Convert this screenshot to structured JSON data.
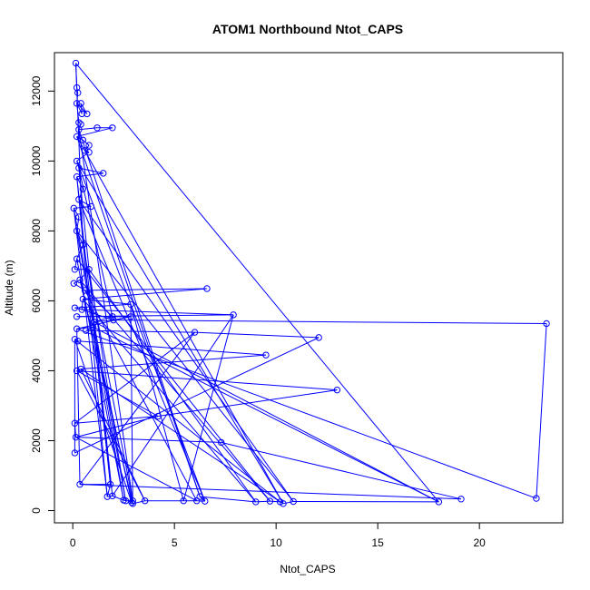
{
  "chart_data": {
    "type": "line",
    "title": "ATOM1 Northbound Ntot_CAPS",
    "xlabel": "Ntot_CAPS",
    "ylabel": "Altitude (m)",
    "xlim": [
      -0.9,
      24.1
    ],
    "ylim": [
      -350,
      13100
    ],
    "x_ticks": [
      0,
      5,
      10,
      15,
      20
    ],
    "y_ticks": [
      0,
      2000,
      4000,
      6000,
      8000,
      10000,
      12000
    ],
    "grid": false,
    "legend": "none",
    "line_color": "#0000ff",
    "marker": "open-circle",
    "series": [
      {
        "values": [
          [
            0.15,
            12800
          ],
          [
            0.2,
            12100
          ],
          [
            0.25,
            11950
          ],
          [
            0.2,
            11650
          ],
          [
            0.4,
            11650
          ],
          [
            0.45,
            11350
          ],
          [
            0.7,
            11350
          ],
          [
            0.3,
            11100
          ],
          [
            0.4,
            11050
          ],
          [
            0.3,
            10900
          ],
          [
            1.2,
            10950
          ],
          [
            1.95,
            10950
          ],
          [
            0.2,
            10700
          ],
          [
            0.5,
            10600
          ],
          [
            0.8,
            10450
          ],
          [
            0.6,
            10300
          ],
          [
            0.8,
            10250
          ],
          [
            0.2,
            10000
          ],
          [
            0.3,
            9800
          ],
          [
            1.5,
            9650
          ],
          [
            0.2,
            9550
          ],
          [
            0.5,
            9200
          ],
          [
            0.3,
            8900
          ],
          [
            0.9,
            8700
          ],
          [
            0.05,
            8650
          ],
          [
            0.3,
            8400
          ],
          [
            0.2,
            8000
          ],
          [
            0.5,
            7600
          ],
          [
            0.2,
            7200
          ],
          [
            0.1,
            6900
          ],
          [
            0.8,
            6900
          ],
          [
            0.35,
            6600
          ],
          [
            0.05,
            6500
          ],
          [
            0.6,
            6300
          ],
          [
            6.6,
            6350
          ],
          [
            0.5,
            6050
          ],
          [
            2.85,
            5900
          ],
          [
            0.1,
            5800
          ],
          [
            0.45,
            5750
          ],
          [
            7.9,
            5600
          ],
          [
            0.2,
            5550
          ],
          [
            2.85,
            5550
          ],
          [
            1.95,
            5550
          ],
          [
            1.05,
            5400
          ],
          [
            2.0,
            5450
          ],
          [
            23.3,
            5350
          ],
          [
            0.2,
            5200
          ],
          [
            1.0,
            5250
          ],
          [
            0.65,
            5150
          ],
          [
            6.0,
            5100
          ],
          [
            12.1,
            4950
          ],
          [
            0.1,
            4900
          ],
          [
            0.25,
            4850
          ],
          [
            9.5,
            4450
          ],
          [
            0.4,
            4050
          ],
          [
            0.2,
            4000
          ],
          [
            13.0,
            3450
          ],
          [
            4.2,
            2700
          ],
          [
            0.1,
            2500
          ],
          [
            0.15,
            2100
          ],
          [
            7.3,
            1950
          ],
          [
            0.1,
            1650
          ],
          [
            0.35,
            750
          ],
          [
            1.85,
            750
          ],
          [
            1.7,
            400
          ],
          [
            1.95,
            420
          ],
          [
            2.5,
            300
          ],
          [
            2.6,
            280
          ],
          [
            2.95,
            280
          ],
          [
            2.9,
            230
          ],
          [
            2.95,
            200
          ],
          [
            3.55,
            280
          ],
          [
            5.45,
            280
          ],
          [
            6.1,
            280
          ],
          [
            6.5,
            270
          ],
          [
            6.25,
            400
          ],
          [
            9.0,
            250
          ],
          [
            9.7,
            270
          ],
          [
            10.2,
            250
          ],
          [
            10.35,
            200
          ],
          [
            10.85,
            260
          ],
          [
            18.0,
            250
          ],
          [
            19.1,
            330
          ],
          [
            22.8,
            350
          ]
        ],
        "path_order": [
          0,
          1,
          2,
          3,
          5,
          4,
          6,
          3,
          7,
          8,
          9,
          10,
          11,
          12,
          13,
          14,
          15,
          16,
          17,
          18,
          19,
          20,
          21,
          22,
          23,
          24,
          25,
          26,
          27,
          28,
          29,
          30,
          31,
          32,
          33,
          34,
          35,
          36,
          37,
          38,
          39,
          40,
          41,
          42,
          43,
          44,
          45,
          83,
          46,
          47,
          48,
          49,
          50,
          61,
          51,
          52,
          53,
          54,
          55,
          56,
          57,
          58,
          59,
          60,
          82,
          62,
          63,
          64,
          65,
          66,
          67,
          68,
          69,
          70,
          71,
          72,
          73,
          74,
          75,
          76,
          77,
          78,
          79,
          80,
          81,
          0,
          27,
          68,
          9,
          75,
          12,
          79,
          17,
          74,
          22,
          80,
          26,
          66,
          28,
          77,
          31,
          70,
          36,
          72,
          39,
          65,
          43,
          81,
          47,
          69,
          51,
          78,
          54,
          71,
          55,
          57,
          59,
          73,
          33,
          42,
          18,
          63,
          20,
          64,
          24,
          67,
          30,
          76,
          35,
          38,
          44,
          41,
          46,
          62,
          49,
          58
        ]
      }
    ]
  }
}
